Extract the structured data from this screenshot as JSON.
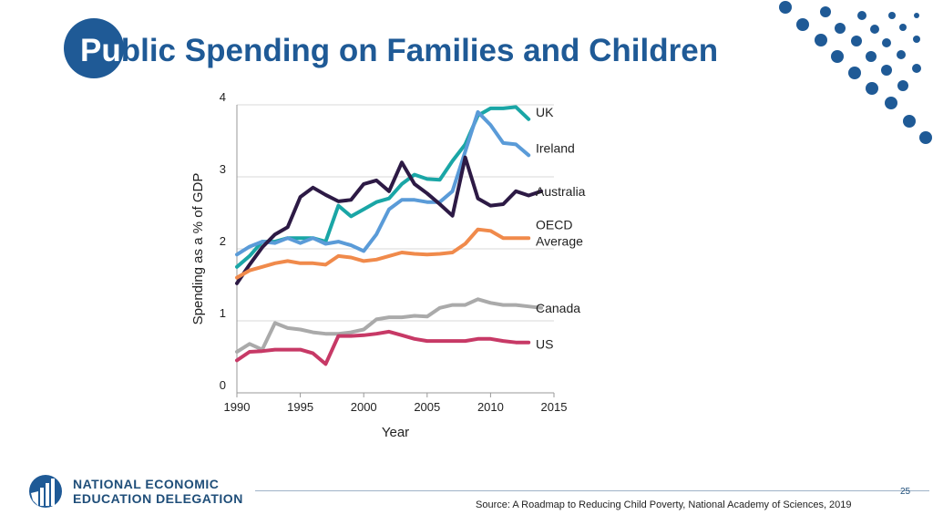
{
  "title": {
    "first": "Pu",
    "rest": "blic Spending on Families and Children"
  },
  "colors": {
    "brand": "#1f5a96",
    "UK": "#1aa6a6",
    "Ireland": "#5a9bd8",
    "Australia": "#2d1a45",
    "OECD Average": "#f08a4b",
    "Canada": "#aaaaaa",
    "US": "#c73966"
  },
  "chart_data": {
    "type": "line",
    "title": "",
    "xlabel": "Year",
    "ylabel": "Spending as a % of GDP",
    "xlim": [
      1990,
      2015
    ],
    "ylim": [
      0,
      4
    ],
    "xticks": [
      1990,
      1995,
      2000,
      2005,
      2010,
      2015
    ],
    "yticks": [
      0,
      1,
      2,
      3,
      4
    ],
    "grid": "horizontal",
    "series": [
      {
        "name": "UK",
        "label": "UK",
        "x": [
          1990,
          1991,
          1992,
          1993,
          1994,
          1995,
          1996,
          1997,
          1998,
          1999,
          2000,
          2001,
          2002,
          2003,
          2004,
          2005,
          2006,
          2007,
          2008,
          2009,
          2010,
          2011,
          2012,
          2013
        ],
        "y": [
          1.75,
          1.9,
          2.1,
          2.1,
          2.15,
          2.15,
          2.15,
          2.1,
          2.6,
          2.45,
          2.55,
          2.65,
          2.7,
          2.9,
          3.03,
          2.97,
          2.96,
          3.22,
          3.45,
          3.85,
          3.95,
          3.95,
          3.97,
          3.8
        ]
      },
      {
        "name": "Ireland",
        "label": "Ireland",
        "x": [
          1990,
          1991,
          1992,
          1993,
          1994,
          1995,
          1996,
          1997,
          1998,
          1999,
          2000,
          2001,
          2002,
          2003,
          2004,
          2005,
          2006,
          2007,
          2008,
          2009,
          2010,
          2011,
          2012,
          2013
        ],
        "y": [
          1.92,
          2.03,
          2.1,
          2.08,
          2.15,
          2.08,
          2.15,
          2.07,
          2.1,
          2.05,
          1.97,
          2.2,
          2.55,
          2.68,
          2.68,
          2.65,
          2.65,
          2.8,
          3.35,
          3.9,
          3.72,
          3.47,
          3.45,
          3.3
        ]
      },
      {
        "name": "Australia",
        "label": "Australia",
        "x": [
          1990,
          1991,
          1992,
          1993,
          1994,
          1995,
          1996,
          1997,
          1998,
          1999,
          2000,
          2001,
          2002,
          2003,
          2004,
          2005,
          2006,
          2007,
          2008,
          2009,
          2010,
          2011,
          2012,
          2013,
          2014
        ],
        "y": [
          1.52,
          1.78,
          2.02,
          2.2,
          2.3,
          2.72,
          2.85,
          2.75,
          2.66,
          2.68,
          2.9,
          2.95,
          2.8,
          3.2,
          2.9,
          2.77,
          2.62,
          2.46,
          3.27,
          2.7,
          2.6,
          2.62,
          2.8,
          2.74,
          2.8
        ]
      },
      {
        "name": "OECD Average",
        "label": "OECD\nAverage",
        "x": [
          1990,
          1991,
          1992,
          1993,
          1994,
          1995,
          1996,
          1997,
          1998,
          1999,
          2000,
          2001,
          2002,
          2003,
          2004,
          2005,
          2006,
          2007,
          2008,
          2009,
          2010,
          2011,
          2012,
          2013
        ],
        "y": [
          1.6,
          1.7,
          1.75,
          1.8,
          1.83,
          1.8,
          1.8,
          1.78,
          1.9,
          1.88,
          1.83,
          1.85,
          1.9,
          1.95,
          1.93,
          1.92,
          1.93,
          1.95,
          2.07,
          2.27,
          2.25,
          2.15,
          2.15,
          2.15
        ]
      },
      {
        "name": "Canada",
        "label": "Canada",
        "x": [
          1990,
          1991,
          1992,
          1993,
          1994,
          1995,
          1996,
          1997,
          1998,
          1999,
          2000,
          2001,
          2002,
          2003,
          2004,
          2005,
          2006,
          2007,
          2008,
          2009,
          2010,
          2011,
          2012,
          2013,
          2014
        ],
        "y": [
          0.57,
          0.68,
          0.6,
          0.97,
          0.9,
          0.88,
          0.84,
          0.82,
          0.82,
          0.84,
          0.88,
          1.02,
          1.05,
          1.05,
          1.07,
          1.06,
          1.18,
          1.22,
          1.22,
          1.3,
          1.25,
          1.22,
          1.22,
          1.2,
          1.18
        ]
      },
      {
        "name": "US",
        "label": "US",
        "x": [
          1990,
          1991,
          1992,
          1993,
          1994,
          1995,
          1996,
          1997,
          1998,
          1999,
          2000,
          2001,
          2002,
          2003,
          2004,
          2005,
          2006,
          2007,
          2008,
          2009,
          2010,
          2011,
          2012,
          2013
        ],
        "y": [
          0.45,
          0.57,
          0.58,
          0.6,
          0.6,
          0.6,
          0.55,
          0.4,
          0.79,
          0.79,
          0.8,
          0.82,
          0.85,
          0.8,
          0.75,
          0.72,
          0.72,
          0.72,
          0.72,
          0.75,
          0.75,
          0.72,
          0.7,
          0.7
        ]
      }
    ]
  },
  "footer": {
    "logo_line1": "NATIONAL ECONOMIC",
    "logo_line2": "EDUCATION DELEGATION",
    "page_number": "25",
    "source": "Source: A Roadmap to Reducing Child Poverty, National Academy of Sciences, 2019"
  }
}
